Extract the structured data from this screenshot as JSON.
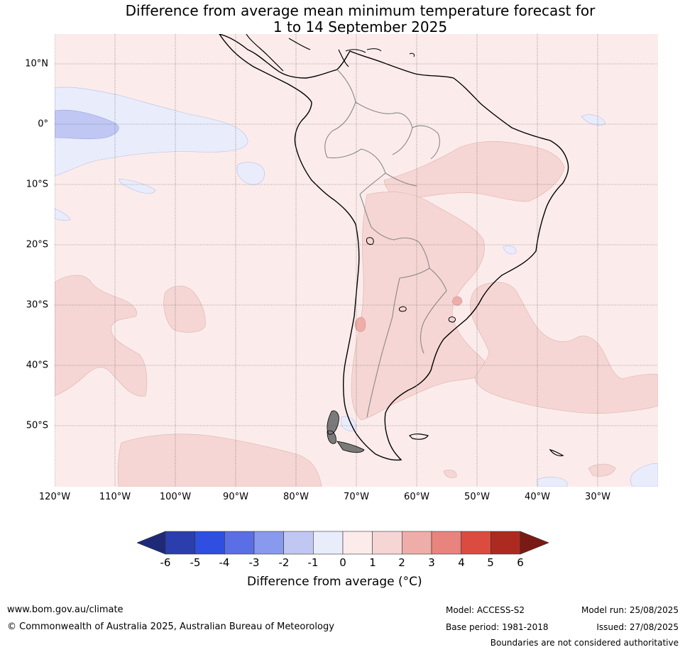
{
  "title_line1": "Difference from average mean minimum temperature forecast for",
  "title_line2": "1 to 14 September 2025",
  "lat_labels": [
    "10°N",
    "0°",
    "10°S",
    "20°S",
    "30°S",
    "40°S",
    "50°S"
  ],
  "lon_labels": [
    "120°W",
    "110°W",
    "100°W",
    "90°W",
    "80°W",
    "70°W",
    "60°W",
    "50°W",
    "40°W",
    "30°W"
  ],
  "colorbar": {
    "ticks": [
      "-6",
      "-5",
      "-4",
      "-3",
      "-2",
      "-1",
      "0",
      "1",
      "2",
      "3",
      "4",
      "5",
      "6"
    ],
    "colors": [
      "#2a3ead",
      "#2e4fe0",
      "#5a6fe6",
      "#8899ee",
      "#c0c7f3",
      "#e9ecfb",
      "#fbeceb",
      "#f5d6d4",
      "#eeada9",
      "#e8837d",
      "#dc4b3f",
      "#ad2a20"
    ],
    "low_extend_color": "#1e2a78",
    "high_extend_color": "#7a1a14",
    "title": "Difference from average (°C)"
  },
  "footer": {
    "website": "www.bom.gov.au/climate",
    "copyright": "© Commonwealth of Australia 2025, Australian Bureau of Meteorology",
    "model": "Model: ACCESS-S2",
    "base_period": "Base period: 1981-2018",
    "model_run": "Model run: 25/08/2025",
    "issued": "Issued: 27/08/2025",
    "disclaimer": "Boundaries are not considered authoritative"
  }
}
